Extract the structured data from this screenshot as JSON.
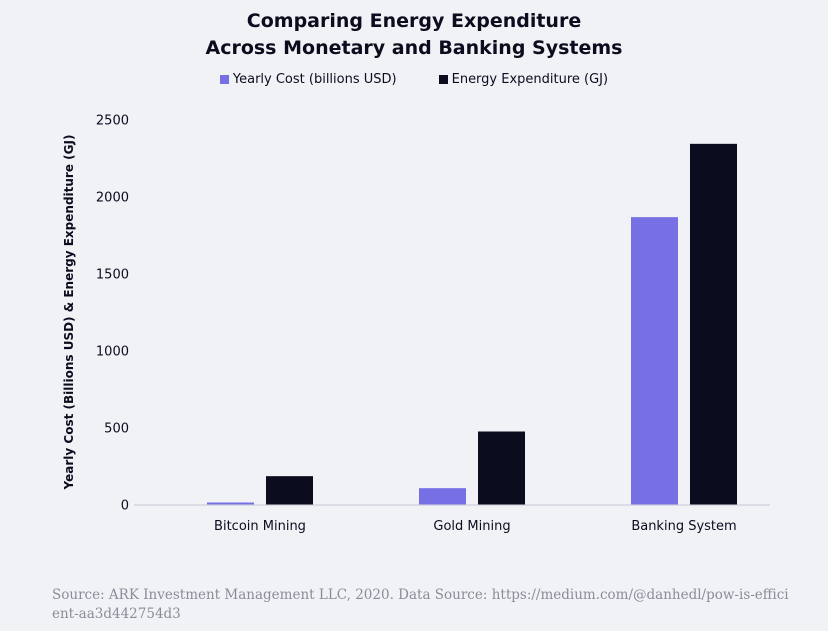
{
  "chart_data": {
    "type": "bar",
    "title_lines": [
      "Comparing Energy Expenditure",
      "Across Monetary and Banking Systems"
    ],
    "xlabel": "",
    "ylabel": "Yearly Cost (Billions USD) & Energy Expenditure (GJ)",
    "categories": [
      "Bitcoin Mining",
      "Gold Mining",
      "Banking System"
    ],
    "series": [
      {
        "name": "Yearly Cost (billions USD)",
        "color": "#7670e4",
        "values": [
          13,
          106,
          1866
        ]
      },
      {
        "name": "Energy Expenditure (GJ)",
        "color": "#0b0c1e",
        "values": [
          184,
          474,
          2342
        ]
      }
    ],
    "ylim": [
      0,
      2500
    ],
    "yticks": [
      0,
      500,
      1000,
      1500,
      2000,
      2500
    ],
    "grid": false,
    "legend_position": "top-center"
  },
  "source": "Source: ARK Investment Management LLC, 2020. Data Source: https://medium.com/@danhedl/pow-is-efficient-aa3d442754d3"
}
